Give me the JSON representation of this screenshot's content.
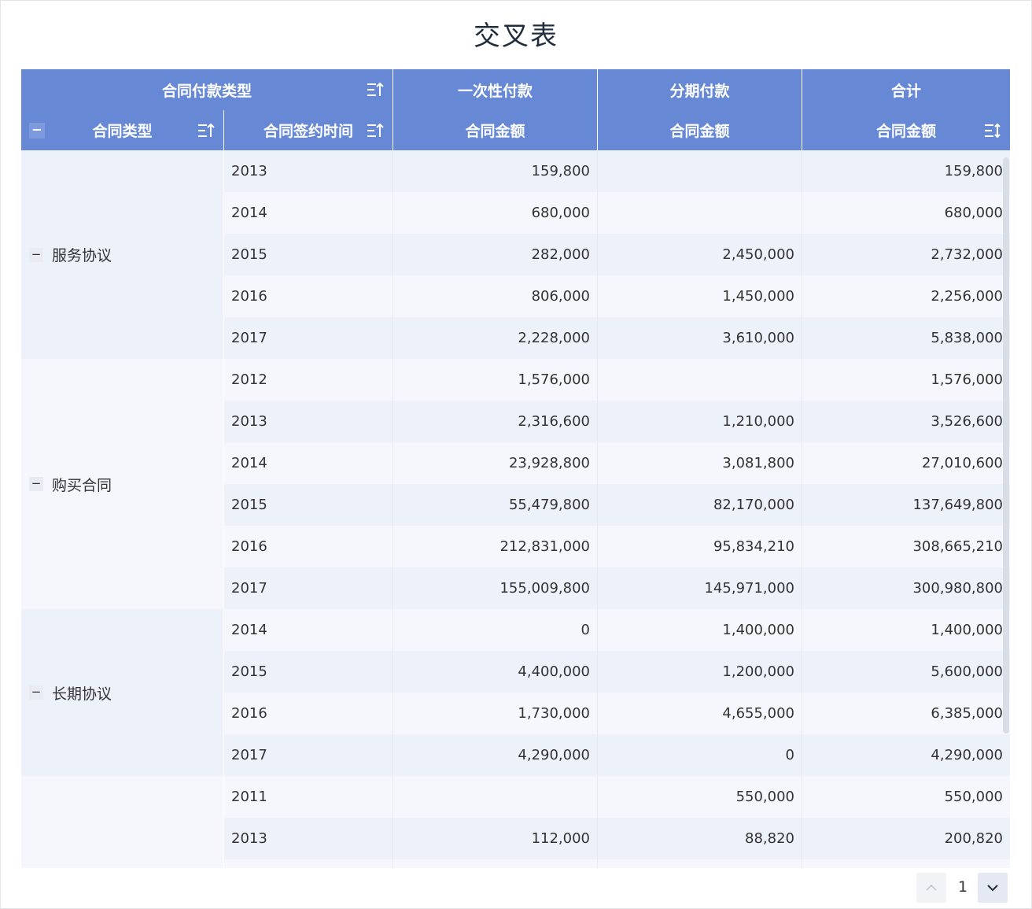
{
  "title": "交叉表",
  "header": {
    "row1": {
      "dimension_label": "合同付款类型",
      "columns": [
        "一次性付款",
        "分期付款",
        "合计"
      ]
    },
    "row2": {
      "contract_type_label": "合同类型",
      "sign_time_label": "合同签约时间",
      "measure_labels": [
        "合同金额",
        "合同金额",
        "合同金额"
      ]
    }
  },
  "groups": [
    {
      "name": "服务协议",
      "rows": [
        {
          "year": "2013",
          "lump_sum": "159,800",
          "installment": "",
          "total": "159,800"
        },
        {
          "year": "2014",
          "lump_sum": "680,000",
          "installment": "",
          "total": "680,000"
        },
        {
          "year": "2015",
          "lump_sum": "282,000",
          "installment": "2,450,000",
          "total": "2,732,000"
        },
        {
          "year": "2016",
          "lump_sum": "806,000",
          "installment": "1,450,000",
          "total": "2,256,000"
        },
        {
          "year": "2017",
          "lump_sum": "2,228,000",
          "installment": "3,610,000",
          "total": "5,838,000"
        }
      ]
    },
    {
      "name": "购买合同",
      "rows": [
        {
          "year": "2012",
          "lump_sum": "1,576,000",
          "installment": "",
          "total": "1,576,000"
        },
        {
          "year": "2013",
          "lump_sum": "2,316,600",
          "installment": "1,210,000",
          "total": "3,526,600"
        },
        {
          "year": "2014",
          "lump_sum": "23,928,800",
          "installment": "3,081,800",
          "total": "27,010,600"
        },
        {
          "year": "2015",
          "lump_sum": "55,479,800",
          "installment": "82,170,000",
          "total": "137,649,800"
        },
        {
          "year": "2016",
          "lump_sum": "212,831,000",
          "installment": "95,834,210",
          "total": "308,665,210"
        },
        {
          "year": "2017",
          "lump_sum": "155,009,800",
          "installment": "145,971,000",
          "total": "300,980,800"
        }
      ]
    },
    {
      "name": "长期协议",
      "rows": [
        {
          "year": "2014",
          "lump_sum": "0",
          "installment": "1,400,000",
          "total": "1,400,000"
        },
        {
          "year": "2015",
          "lump_sum": "4,400,000",
          "installment": "1,200,000",
          "total": "5,600,000"
        },
        {
          "year": "2016",
          "lump_sum": "1,730,000",
          "installment": "4,655,000",
          "total": "6,385,000"
        },
        {
          "year": "2017",
          "lump_sum": "4,290,000",
          "installment": "0",
          "total": "4,290,000"
        }
      ]
    },
    {
      "name": "",
      "rows": [
        {
          "year": "2011",
          "lump_sum": "",
          "installment": "550,000",
          "total": "550,000"
        },
        {
          "year": "2013",
          "lump_sum": "112,000",
          "installment": "88,820",
          "total": "200,820"
        },
        {
          "year": "",
          "lump_sum": "",
          "installment": "",
          "total": ""
        }
      ]
    }
  ],
  "pager": {
    "current_page": "1"
  },
  "icons": {
    "sort": "sort-ascending-icon",
    "collapse": "minus-icon",
    "prev": "chevron-up-icon",
    "next": "chevron-down-icon"
  },
  "colors": {
    "header_bg": "#6688d5",
    "row_dark": "#edf2fa",
    "row_light": "#f5f7fc"
  }
}
